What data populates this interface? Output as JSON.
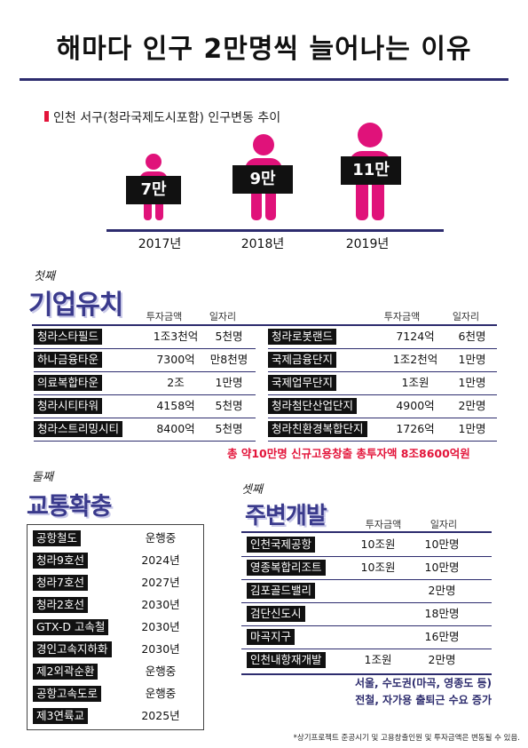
{
  "title": "해마다 인구 2만명씩 늘어나는 이유",
  "population": {
    "subtitle": "인천 서구(청라국제도시포함) 인구변동 추이",
    "bars": [
      {
        "year": "2017년",
        "value": "7만"
      },
      {
        "year": "2018년",
        "value": "9만"
      },
      {
        "year": "2019년",
        "value": "11만"
      }
    ],
    "accent_color": "#e0127a"
  },
  "business": {
    "ordinal": "첫째",
    "title": "기업유치",
    "headers": {
      "investment": "투자금액",
      "jobs": "일자리"
    },
    "left_rows": [
      {
        "name": "청라스타필드",
        "investment": "1조3천억",
        "jobs": "5천명"
      },
      {
        "name": "하나금융타운",
        "investment": "7300억",
        "jobs": "만8천명"
      },
      {
        "name": "의료복합타운",
        "investment": "2조",
        "jobs": "1만명"
      },
      {
        "name": "청라시티타워",
        "investment": "4158억",
        "jobs": "5천명"
      },
      {
        "name": "청라스트리밍시티",
        "investment": "8400억",
        "jobs": "5천명"
      }
    ],
    "right_rows": [
      {
        "name": "청라로봇랜드",
        "investment": "7124억",
        "jobs": "6천명"
      },
      {
        "name": "국제금융단지",
        "investment": "1조2천억",
        "jobs": "1만명"
      },
      {
        "name": "국제업무단지",
        "investment": "1조원",
        "jobs": "1만명"
      },
      {
        "name": "청라첨단산업단지",
        "investment": "4900억",
        "jobs": "2만명"
      },
      {
        "name": "청라친환경복합단지",
        "investment": "1726억",
        "jobs": "1만명"
      }
    ],
    "total_note": "총 약10만명 신규고용창출 총투자액 8조8600억원"
  },
  "transport": {
    "ordinal": "둘째",
    "title": "교통확충",
    "rows": [
      {
        "name": "공항철도",
        "status": "운행중"
      },
      {
        "name": "청라9호선",
        "status": "2024년"
      },
      {
        "name": "청라7호선",
        "status": "2027년"
      },
      {
        "name": "청라2호선",
        "status": "2030년"
      },
      {
        "name": "GTX-D 고속철",
        "status": "2030년"
      },
      {
        "name": "경인고속지하화",
        "status": "2030년"
      },
      {
        "name": "제2외곽순환",
        "status": "운행중"
      },
      {
        "name": "공항고속도로",
        "status": "운행중"
      },
      {
        "name": "제3연륙교",
        "status": "2025년"
      }
    ]
  },
  "development": {
    "ordinal": "셋째",
    "title": "주변개발",
    "headers": {
      "investment": "투자금액",
      "jobs": "일자리"
    },
    "rows": [
      {
        "name": "인천국제공항",
        "investment": "10조원",
        "jobs": "10만명"
      },
      {
        "name": "영종복합리조트",
        "investment": "10조원",
        "jobs": "10만명"
      },
      {
        "name": "김포골드밸리",
        "investment": "",
        "jobs": "2만명"
      },
      {
        "name": "검단신도시",
        "investment": "",
        "jobs": "18만명"
      },
      {
        "name": "마곡지구",
        "investment": "",
        "jobs": "16만명"
      },
      {
        "name": "인천내항재개발",
        "investment": "1조원",
        "jobs": "2만명"
      }
    ],
    "note_line1": "서울, 수도권(마곡, 영종도 등)",
    "note_line2": "전철, 자가용 출퇴근 수요 증가"
  },
  "footnote": "*상기프로젝트 준공시기 및 고용창출인원 및 투자금액은 변동될 수 있음."
}
